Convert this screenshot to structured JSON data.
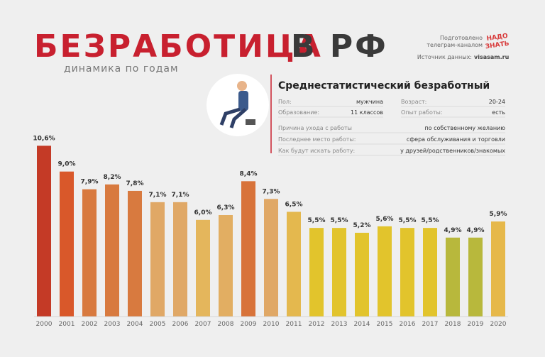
{
  "header": {
    "title_red": "БЕЗРАБОТИЦА",
    "title_gray": "В РФ",
    "subtitle": "динамика по годам",
    "prepared_1": "Подготовлено",
    "prepared_2": "телеграм-каналом",
    "logo_1": "НАДО",
    "logo_2": "ЗНАТЬ",
    "source_label": "Источник данных:",
    "source": "visasam.ru"
  },
  "profile": {
    "title": "Среднестатистический безработный",
    "rows": [
      [
        "Пол:",
        "мужчина"
      ],
      [
        "Возраст:",
        "20-24"
      ],
      [
        "Образование:",
        "11 классов"
      ],
      [
        "Опыт работы:",
        "есть"
      ],
      [
        "Причина ухода  с работы",
        "по собственному желанию"
      ],
      [
        "Последнее место работы:",
        "сфера обслуживания и торговли"
      ],
      [
        "Как будут искать работу:",
        "у друзей/родственников/знакомых"
      ]
    ]
  },
  "chart_data": {
    "type": "bar",
    "categories": [
      "2000",
      "2001",
      "2002",
      "2003",
      "2004",
      "2005",
      "2006",
      "2007",
      "2008",
      "2009",
      "2010",
      "2011",
      "2012",
      "2013",
      "2014",
      "2015",
      "2016",
      "2017",
      "2018",
      "2019",
      "2020"
    ],
    "values": [
      10.6,
      9.0,
      7.9,
      8.2,
      7.8,
      7.1,
      7.1,
      6.0,
      6.3,
      8.4,
      7.3,
      6.5,
      5.5,
      5.5,
      5.2,
      5.6,
      5.5,
      5.5,
      4.9,
      4.9,
      5.9
    ],
    "value_labels": [
      "10,6%",
      "9,0%",
      "7,9%",
      "8,2%",
      "7,8%",
      "7,1%",
      "7,1%",
      "6,0%",
      "6,3%",
      "8,4%",
      "7,3%",
      "6,5%",
      "5,5%",
      "5,5%",
      "5,2%",
      "5,6%",
      "5,5%",
      "5,5%",
      "4,9%",
      "4,9%",
      "5,9%"
    ],
    "colors": [
      "#c43a26",
      "#d9582a",
      "#d87a3f",
      "#d87a3f",
      "#d87a3f",
      "#e0a866",
      "#e0a866",
      "#e4b65c",
      "#e2ae62",
      "#d8733a",
      "#e0a866",
      "#e4b84e",
      "#e2c42c",
      "#e2c42c",
      "#e2c42c",
      "#e2c42c",
      "#e2c42c",
      "#e2c42c",
      "#b8b83c",
      "#b8b83c",
      "#e6b84a"
    ]
  }
}
